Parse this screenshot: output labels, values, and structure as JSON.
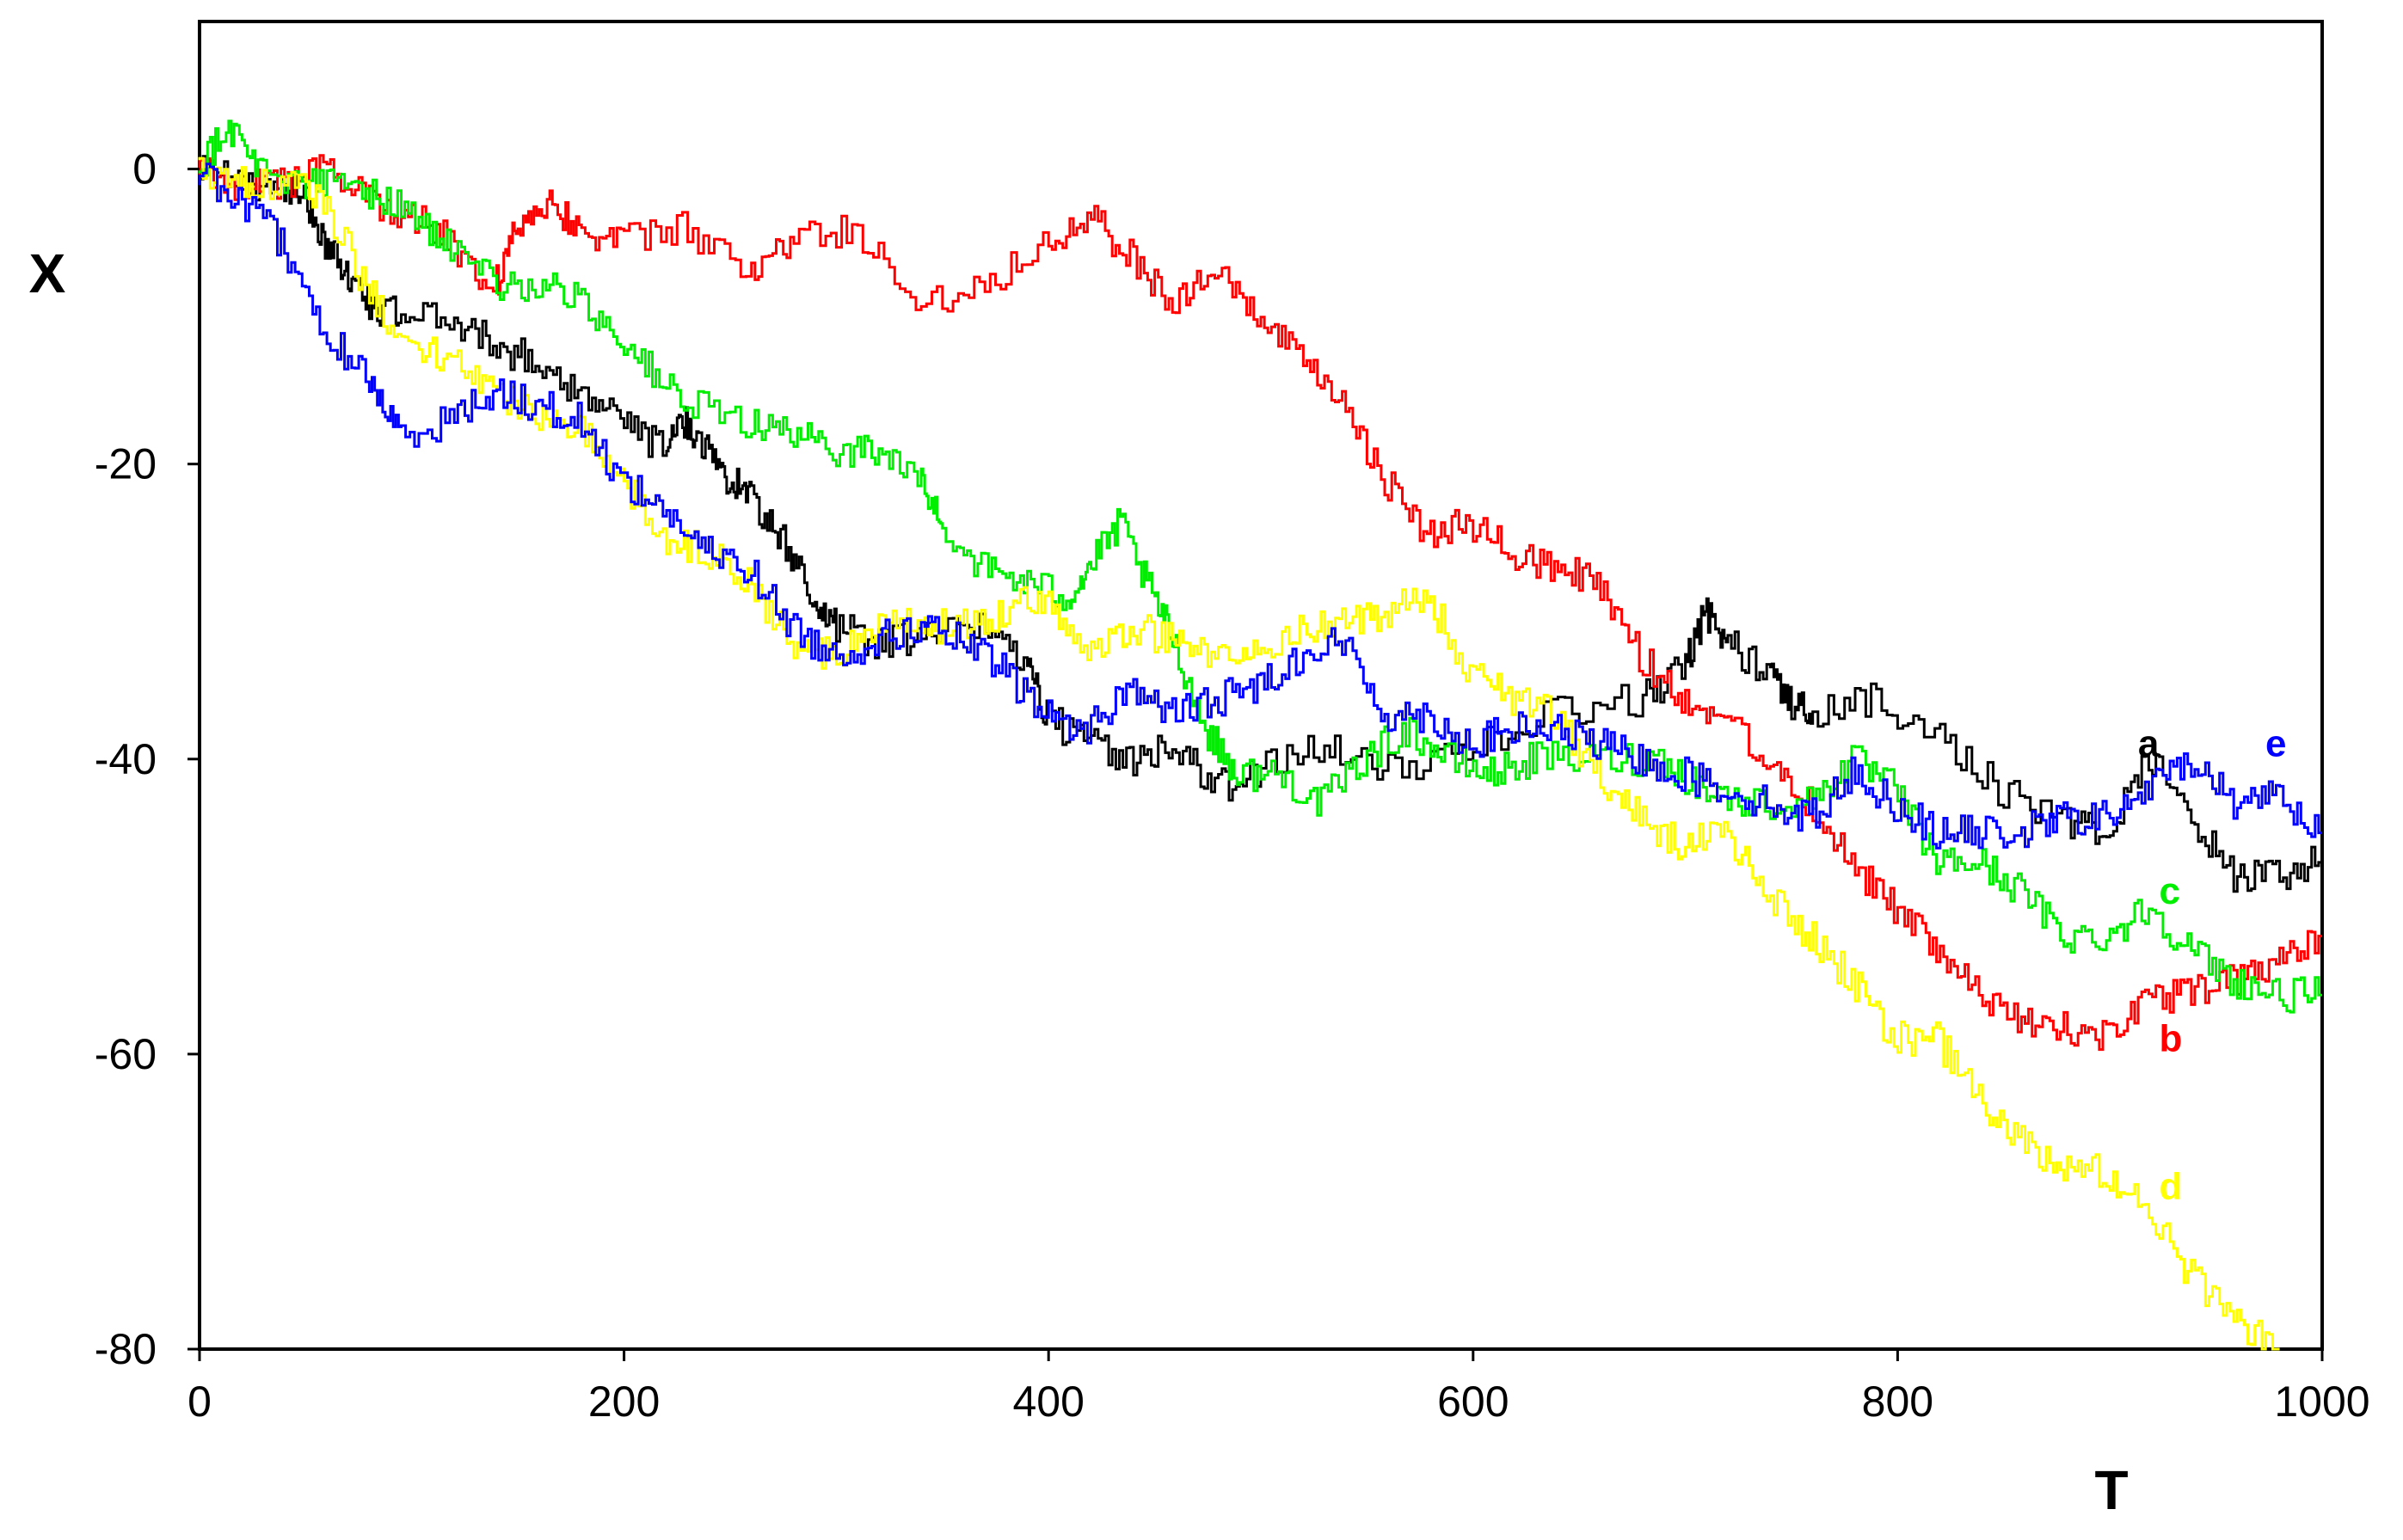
{
  "chart_data": {
    "type": "line",
    "xlabel": "T",
    "ylabel": "X",
    "xlim": [
      0,
      1000
    ],
    "ylim": [
      -80,
      10
    ],
    "x_ticks": [
      0,
      200,
      400,
      600,
      800,
      1000
    ],
    "y_ticks": [
      0,
      -20,
      -40,
      -60,
      -80
    ],
    "grid": false,
    "legend": "none",
    "series": [
      {
        "name": "a",
        "color": "#000000",
        "points": [
          [
            0,
            0
          ],
          [
            20,
            -1
          ],
          [
            40,
            -1
          ],
          [
            50,
            -2
          ],
          [
            60,
            -5
          ],
          [
            70,
            -7
          ],
          [
            80,
            -9
          ],
          [
            95,
            -10
          ],
          [
            120,
            -10
          ],
          [
            140,
            -12
          ],
          [
            160,
            -13
          ],
          [
            180,
            -15
          ],
          [
            200,
            -17
          ],
          [
            220,
            -19
          ],
          [
            230,
            -17
          ],
          [
            240,
            -19
          ],
          [
            250,
            -21
          ],
          [
            260,
            -22
          ],
          [
            275,
            -25
          ],
          [
            290,
            -29
          ],
          [
            300,
            -31
          ],
          [
            320,
            -32
          ],
          [
            340,
            -32
          ],
          [
            370,
            -31
          ],
          [
            390,
            -33
          ],
          [
            400,
            -37
          ],
          [
            420,
            -39
          ],
          [
            440,
            -40
          ],
          [
            460,
            -39
          ],
          [
            480,
            -42
          ],
          [
            500,
            -41
          ],
          [
            530,
            -39
          ],
          [
            560,
            -41
          ],
          [
            600,
            -39
          ],
          [
            640,
            -37
          ],
          [
            680,
            -36
          ],
          [
            700,
            -34
          ],
          [
            710,
            -30
          ],
          [
            720,
            -32
          ],
          [
            740,
            -34
          ],
          [
            750,
            -36
          ],
          [
            760,
            -37
          ],
          [
            790,
            -36
          ],
          [
            820,
            -38
          ],
          [
            850,
            -42
          ],
          [
            880,
            -44
          ],
          [
            900,
            -45
          ],
          [
            920,
            -40
          ],
          [
            940,
            -44
          ],
          [
            960,
            -48
          ],
          [
            980,
            -48
          ],
          [
            1000,
            -47
          ]
        ],
        "label_x": 910,
        "label_y": -39
      },
      {
        "name": "b",
        "color": "#ff0000",
        "points": [
          [
            0,
            0
          ],
          [
            20,
            -1
          ],
          [
            40,
            -1
          ],
          [
            60,
            0
          ],
          [
            80,
            -2
          ],
          [
            100,
            -3
          ],
          [
            120,
            -5
          ],
          [
            140,
            -8
          ],
          [
            150,
            -4
          ],
          [
            165,
            -2
          ],
          [
            180,
            -4
          ],
          [
            200,
            -5
          ],
          [
            230,
            -4
          ],
          [
            260,
            -7
          ],
          [
            280,
            -5
          ],
          [
            310,
            -4
          ],
          [
            340,
            -9
          ],
          [
            370,
            -8
          ],
          [
            400,
            -5
          ],
          [
            420,
            -3
          ],
          [
            440,
            -6
          ],
          [
            460,
            -9
          ],
          [
            480,
            -7
          ],
          [
            500,
            -10
          ],
          [
            520,
            -13
          ],
          [
            540,
            -16
          ],
          [
            560,
            -21
          ],
          [
            580,
            -25
          ],
          [
            600,
            -24
          ],
          [
            620,
            -26
          ],
          [
            640,
            -27
          ],
          [
            660,
            -28
          ],
          [
            680,
            -33
          ],
          [
            700,
            -36
          ],
          [
            720,
            -37
          ],
          [
            740,
            -40
          ],
          [
            760,
            -43
          ],
          [
            780,
            -47
          ],
          [
            800,
            -50
          ],
          [
            820,
            -53
          ],
          [
            840,
            -56
          ],
          [
            860,
            -58
          ],
          [
            880,
            -58
          ],
          [
            900,
            -59
          ],
          [
            920,
            -56
          ],
          [
            940,
            -56
          ],
          [
            960,
            -55
          ],
          [
            980,
            -54
          ],
          [
            1000,
            -52
          ]
        ],
        "label_x": 920,
        "label_y": -59
      },
      {
        "name": "c",
        "color": "#00ee00",
        "points": [
          [
            0,
            0
          ],
          [
            15,
            3
          ],
          [
            30,
            0
          ],
          [
            50,
            -1
          ],
          [
            70,
            -1
          ],
          [
            90,
            -2
          ],
          [
            110,
            -4
          ],
          [
            130,
            -7
          ],
          [
            150,
            -8
          ],
          [
            170,
            -8
          ],
          [
            190,
            -10
          ],
          [
            210,
            -13
          ],
          [
            230,
            -16
          ],
          [
            260,
            -17
          ],
          [
            280,
            -18
          ],
          [
            300,
            -19
          ],
          [
            320,
            -19
          ],
          [
            340,
            -21
          ],
          [
            350,
            -24
          ],
          [
            370,
            -27
          ],
          [
            390,
            -28
          ],
          [
            410,
            -29
          ],
          [
            420,
            -27
          ],
          [
            435,
            -24
          ],
          [
            450,
            -29
          ],
          [
            460,
            -32
          ],
          [
            475,
            -38
          ],
          [
            490,
            -41
          ],
          [
            510,
            -41
          ],
          [
            530,
            -43
          ],
          [
            550,
            -40
          ],
          [
            570,
            -38
          ],
          [
            590,
            -40
          ],
          [
            610,
            -41
          ],
          [
            630,
            -40
          ],
          [
            660,
            -40
          ],
          [
            690,
            -40
          ],
          [
            710,
            -42
          ],
          [
            730,
            -43
          ],
          [
            760,
            -43
          ],
          [
            780,
            -40
          ],
          [
            800,
            -42
          ],
          [
            820,
            -47
          ],
          [
            840,
            -47
          ],
          [
            860,
            -49
          ],
          [
            880,
            -52
          ],
          [
            900,
            -52
          ],
          [
            920,
            -50
          ],
          [
            940,
            -53
          ],
          [
            960,
            -55
          ],
          [
            980,
            -56
          ],
          [
            1000,
            -56
          ]
        ],
        "label_x": 920,
        "label_y": -49
      },
      {
        "name": "d",
        "color": "#ffff00",
        "points": [
          [
            0,
            0
          ],
          [
            20,
            -1
          ],
          [
            40,
            -1
          ],
          [
            60,
            -2
          ],
          [
            80,
            -8
          ],
          [
            100,
            -12
          ],
          [
            120,
            -13
          ],
          [
            140,
            -15
          ],
          [
            160,
            -17
          ],
          [
            180,
            -17
          ],
          [
            200,
            -21
          ],
          [
            220,
            -25
          ],
          [
            240,
            -26
          ],
          [
            260,
            -28
          ],
          [
            280,
            -32
          ],
          [
            300,
            -33
          ],
          [
            320,
            -31
          ],
          [
            340,
            -31
          ],
          [
            360,
            -31
          ],
          [
            380,
            -30
          ],
          [
            400,
            -29
          ],
          [
            420,
            -33
          ],
          [
            440,
            -31
          ],
          [
            460,
            -32
          ],
          [
            480,
            -33
          ],
          [
            500,
            -33
          ],
          [
            520,
            -31
          ],
          [
            540,
            -31
          ],
          [
            560,
            -30
          ],
          [
            580,
            -29
          ],
          [
            600,
            -34
          ],
          [
            620,
            -36
          ],
          [
            640,
            -37
          ],
          [
            660,
            -41
          ],
          [
            680,
            -44
          ],
          [
            700,
            -46
          ],
          [
            720,
            -45
          ],
          [
            740,
            -49
          ],
          [
            760,
            -52
          ],
          [
            780,
            -55
          ],
          [
            800,
            -59
          ],
          [
            820,
            -59
          ],
          [
            840,
            -63
          ],
          [
            860,
            -66
          ],
          [
            880,
            -68
          ],
          [
            900,
            -68
          ],
          [
            920,
            -71
          ],
          [
            940,
            -75
          ],
          [
            960,
            -78
          ],
          [
            980,
            -80
          ]
        ],
        "label_x": 920,
        "label_y": -69
      },
      {
        "name": "e",
        "color": "#0000ff",
        "points": [
          [
            0,
            0
          ],
          [
            20,
            -2
          ],
          [
            40,
            -5
          ],
          [
            60,
            -11
          ],
          [
            80,
            -14
          ],
          [
            95,
            -18
          ],
          [
            120,
            -17
          ],
          [
            140,
            -15
          ],
          [
            160,
            -16
          ],
          [
            180,
            -17
          ],
          [
            200,
            -21
          ],
          [
            220,
            -23
          ],
          [
            240,
            -26
          ],
          [
            260,
            -27
          ],
          [
            280,
            -31
          ],
          [
            300,
            -33
          ],
          [
            320,
            -32
          ],
          [
            340,
            -31
          ],
          [
            360,
            -32
          ],
          [
            380,
            -34
          ],
          [
            400,
            -37
          ],
          [
            420,
            -38
          ],
          [
            440,
            -35
          ],
          [
            460,
            -37
          ],
          [
            480,
            -36
          ],
          [
            500,
            -35
          ],
          [
            520,
            -33
          ],
          [
            540,
            -32
          ],
          [
            560,
            -37
          ],
          [
            580,
            -37
          ],
          [
            600,
            -39
          ],
          [
            620,
            -38
          ],
          [
            640,
            -38
          ],
          [
            660,
            -39
          ],
          [
            680,
            -40
          ],
          [
            700,
            -41
          ],
          [
            720,
            -42
          ],
          [
            740,
            -43
          ],
          [
            760,
            -44
          ],
          [
            780,
            -41
          ],
          [
            800,
            -43
          ],
          [
            820,
            -45
          ],
          [
            840,
            -45
          ],
          [
            860,
            -45
          ],
          [
            880,
            -44
          ],
          [
            900,
            -44
          ],
          [
            920,
            -42
          ],
          [
            940,
            -40
          ],
          [
            960,
            -43
          ],
          [
            980,
            -42
          ],
          [
            1000,
            -45
          ]
        ],
        "label_x": 970,
        "label_y": -39
      }
    ]
  }
}
